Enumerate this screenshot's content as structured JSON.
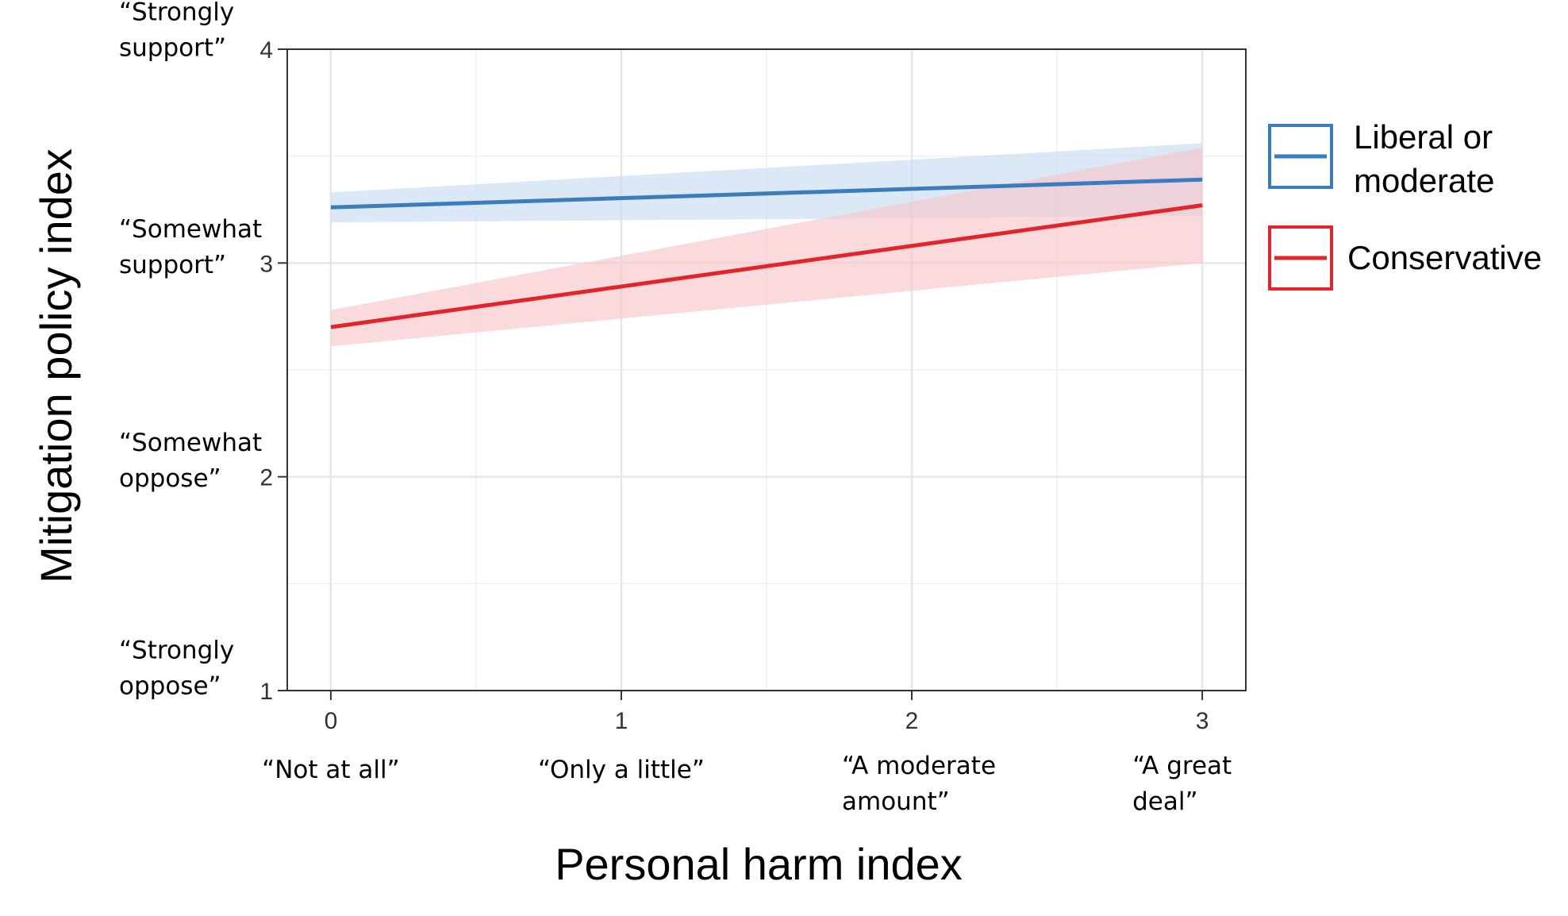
{
  "chart_data": {
    "type": "line",
    "title": "",
    "xlabel": "Personal harm index",
    "ylabel": "Mitigation policy index",
    "xlim": [
      -0.15,
      3.15
    ],
    "ylim": [
      1,
      4
    ],
    "grid": true,
    "legend_position": "right",
    "x_ticks": [
      0,
      1,
      2,
      3
    ],
    "y_ticks": [
      1,
      2,
      3,
      4
    ],
    "x_anchor_labels": [
      {
        "value": 0,
        "lines": [
          "“Not at all”"
        ]
      },
      {
        "value": 1,
        "lines": [
          "“Only a little”"
        ]
      },
      {
        "value": 2,
        "lines": [
          "“A moderate",
          "amount”"
        ]
      },
      {
        "value": 3,
        "lines": [
          "“A great",
          "deal”"
        ]
      }
    ],
    "y_anchor_labels": [
      {
        "value": 4,
        "lines": [
          "“Strongly",
          "support”"
        ]
      },
      {
        "value": 3,
        "lines": [
          "“Somewhat",
          "support”"
        ]
      },
      {
        "value": 2,
        "lines": [
          "“Somewhat",
          "oppose”"
        ]
      },
      {
        "value": 1,
        "lines": [
          "“Strongly",
          "oppose”"
        ]
      }
    ],
    "series": [
      {
        "name": "Liberal or moderate",
        "legend_lines": [
          "Liberal or",
          "moderate"
        ],
        "color": "#3a7dbf",
        "band_color": "#c8dcef",
        "x": [
          0,
          3
        ],
        "y": [
          3.26,
          3.39
        ],
        "ci_lower": [
          3.19,
          3.22
        ],
        "ci_upper": [
          3.33,
          3.56
        ]
      },
      {
        "name": "Conservative",
        "legend_lines": [
          "Conservative"
        ],
        "color": "#e3242b",
        "band_color": "#f7c6c9",
        "x": [
          0,
          3
        ],
        "y": [
          2.7,
          3.27
        ],
        "ci_lower": [
          2.61,
          3.0
        ],
        "ci_upper": [
          2.78,
          3.54
        ]
      }
    ]
  }
}
